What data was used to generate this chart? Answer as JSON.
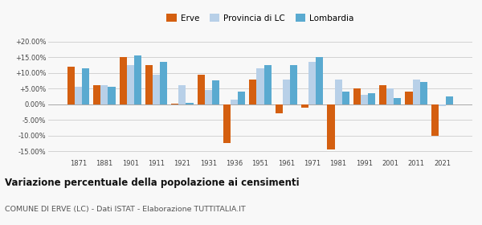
{
  "years": [
    1871,
    1881,
    1901,
    1911,
    1921,
    1931,
    1936,
    1951,
    1961,
    1971,
    1981,
    1991,
    2001,
    2011,
    2021
  ],
  "erve": [
    12.0,
    6.0,
    15.0,
    12.5,
    0.3,
    9.5,
    -12.5,
    8.0,
    -3.0,
    -1.0,
    -14.5,
    5.0,
    6.0,
    4.0,
    -10.0
  ],
  "provincia_lc": [
    5.5,
    6.0,
    12.5,
    9.5,
    6.0,
    4.5,
    1.5,
    11.5,
    8.0,
    13.5,
    8.0,
    3.0,
    5.0,
    8.0,
    -0.5
  ],
  "lombardia": [
    11.5,
    5.5,
    15.5,
    13.5,
    0.5,
    7.5,
    4.0,
    12.5,
    12.5,
    15.0,
    4.0,
    3.5,
    2.0,
    7.0,
    2.5
  ],
  "color_erve": "#d45f10",
  "color_provincia": "#b8d0e8",
  "color_lombardia": "#5aaad0",
  "title": "Variazione percentuale della popolazione ai censimenti",
  "subtitle": "COMUNE DI ERVE (LC) - Dati ISTAT - Elaborazione TUTTITALIA.IT",
  "ylabel_ticks": [
    -15.0,
    -10.0,
    -5.0,
    0.0,
    5.0,
    10.0,
    15.0,
    20.0
  ],
  "ylim": [
    -17.0,
    22.5
  ],
  "legend_labels": [
    "Erve",
    "Provincia di LC",
    "Lombardia"
  ],
  "bg_color": "#f8f8f8"
}
